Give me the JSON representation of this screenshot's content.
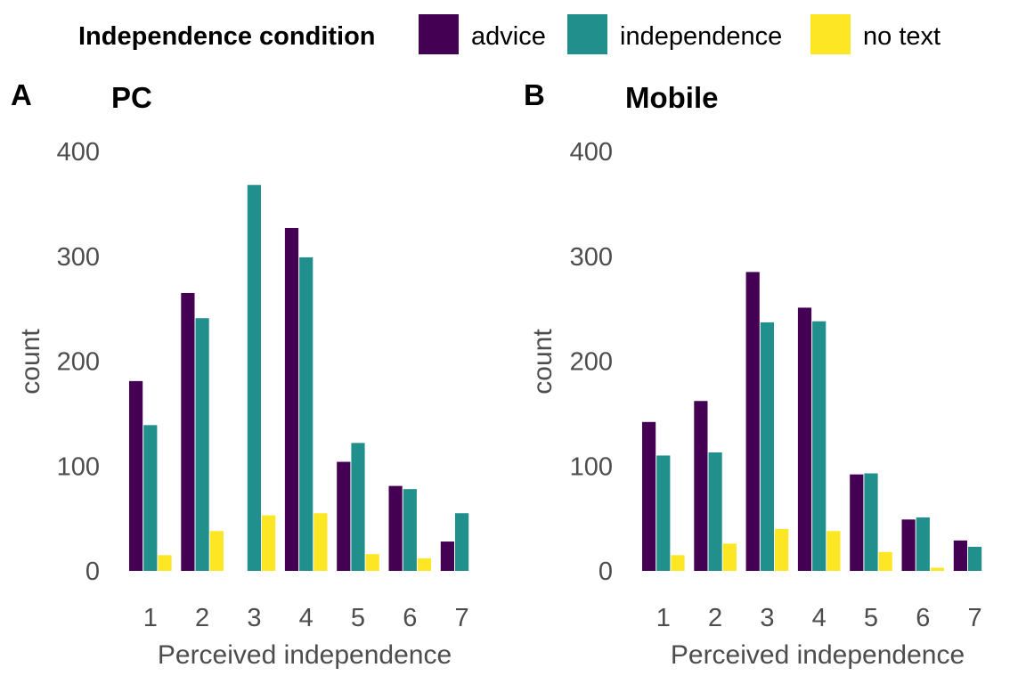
{
  "legend": {
    "title": "Independence condition",
    "position": "top",
    "entries": [
      {
        "label": "advice",
        "color": "#440154"
      },
      {
        "label": "independence",
        "color": "#21908C"
      },
      {
        "label": "no text",
        "color": "#FDE725"
      }
    ]
  },
  "chart_data": [
    {
      "type": "bar",
      "panel_tag": "A",
      "title": "PC",
      "xlabel": "Perceived independence",
      "ylabel": "count",
      "ylim": [
        0,
        420
      ],
      "yticks": [
        0,
        100,
        200,
        300,
        400
      ],
      "grid": false,
      "categories": [
        "1",
        "2",
        "3",
        "4",
        "5",
        "6",
        "7"
      ],
      "series": [
        {
          "name": "advice",
          "values": [
            181,
            265,
            0,
            327,
            104,
            81,
            28
          ]
        },
        {
          "name": "independence",
          "values": [
            139,
            241,
            368,
            299,
            122,
            78,
            55
          ]
        },
        {
          "name": "no text",
          "values": [
            15,
            38,
            53,
            55,
            16,
            12,
            0
          ]
        }
      ]
    },
    {
      "type": "bar",
      "panel_tag": "B",
      "title": "Mobile",
      "xlabel": "Perceived independence",
      "ylabel": "count",
      "ylim": [
        0,
        420
      ],
      "yticks": [
        0,
        100,
        200,
        300,
        400
      ],
      "grid": false,
      "categories": [
        "1",
        "2",
        "3",
        "4",
        "5",
        "6",
        "7"
      ],
      "series": [
        {
          "name": "advice",
          "values": [
            142,
            162,
            285,
            251,
            92,
            49,
            29
          ]
        },
        {
          "name": "independence",
          "values": [
            110,
            113,
            237,
            238,
            93,
            51,
            23
          ]
        },
        {
          "name": "no text",
          "values": [
            15,
            26,
            40,
            38,
            18,
            3,
            0
          ]
        }
      ]
    }
  ]
}
